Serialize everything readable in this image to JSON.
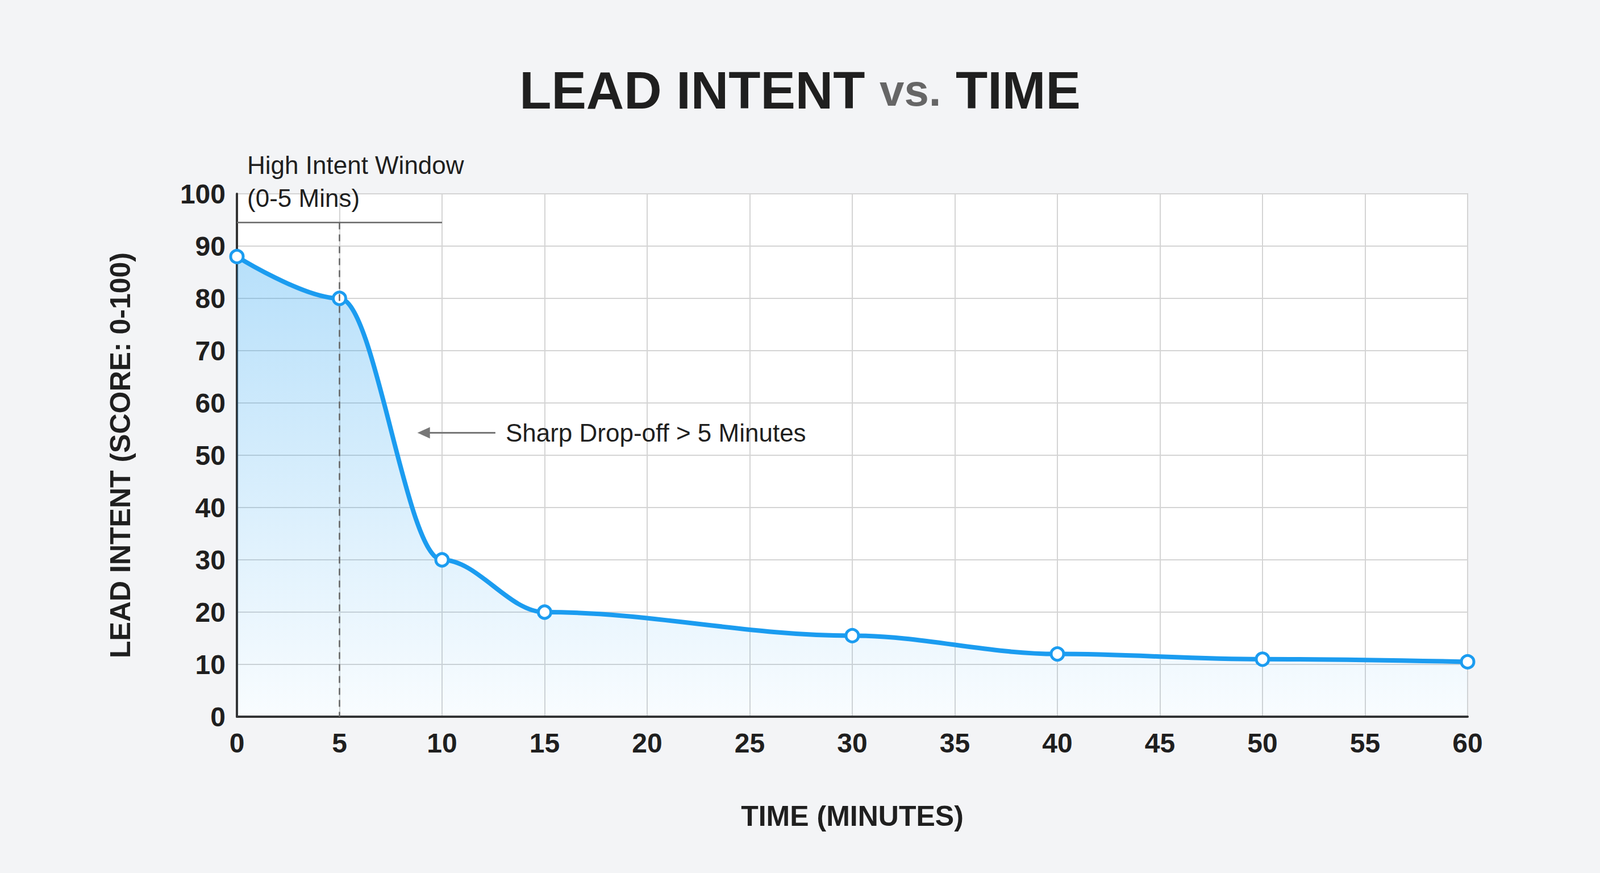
{
  "chart_data": {
    "type": "line",
    "title": "LEAD INTENT vs. TIME",
    "x_label": "TIME (MINUTES)",
    "y_label": "LEAD INTENT (SCORE: 0-100)",
    "x": [
      0,
      5,
      10,
      15,
      30,
      40,
      50,
      60
    ],
    "values": [
      88,
      80,
      30,
      20,
      15.5,
      12,
      11,
      10.5
    ],
    "color": "#1b9cf0",
    "marker": "circle",
    "xlim": [
      0,
      60
    ],
    "xticks": [
      0,
      5,
      10,
      15,
      20,
      25,
      30,
      35,
      40,
      45,
      50,
      55,
      60
    ],
    "ylim": [
      0,
      100
    ],
    "yticks": [
      0,
      10,
      20,
      30,
      40,
      50,
      60,
      70,
      80,
      90,
      100
    ],
    "grid": true,
    "annotations": [
      {
        "text": "High Intent Window (0-5 Mins)",
        "x": 5
      },
      {
        "text": "Sharp Drop-off > 5 Minutes"
      }
    ]
  }
}
